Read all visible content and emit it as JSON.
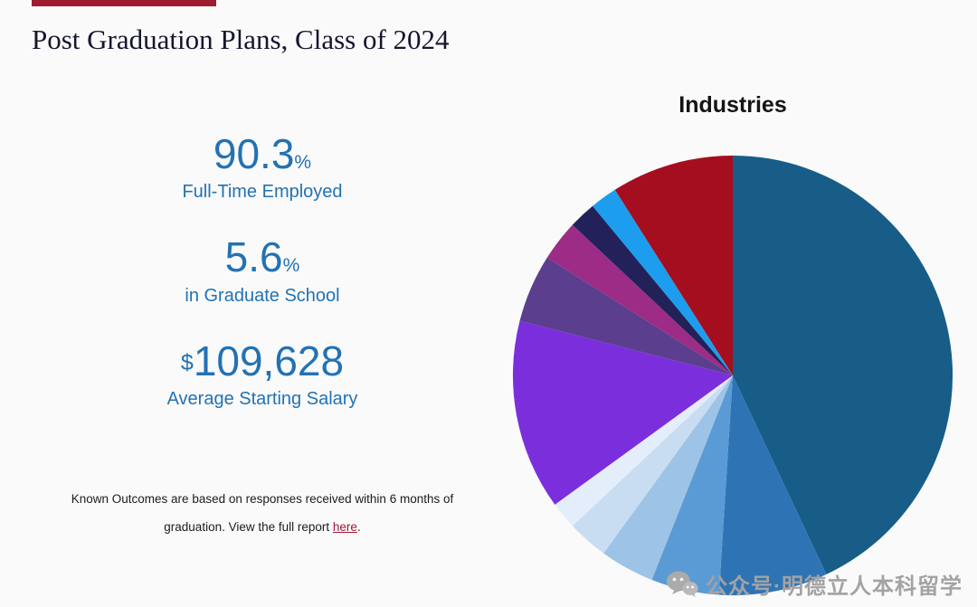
{
  "theme": {
    "page_bg": "#fafafa",
    "accent": "#9e1b32",
    "stat_blue": "#2272b4",
    "text_dark": "#15152e",
    "watermark_gray": "#a3a3a3"
  },
  "page": {
    "title": "Post Graduation Plans, Class of 2024"
  },
  "stats": [
    {
      "value": "90.3",
      "suffix": "%",
      "label": "Full-Time Employed"
    },
    {
      "value": "5.6",
      "suffix": "%",
      "label": "in Graduate School"
    },
    {
      "value": "109,628",
      "prefix": "$",
      "label": "Average Starting Salary"
    }
  ],
  "footnote": {
    "line1": "Known Outcomes are based on responses received within 6 months of",
    "line2_prefix": "graduation. View the full report ",
    "link": "here",
    "line2_suffix": "."
  },
  "chart_data": {
    "type": "pie",
    "title": "Industries",
    "legend": "none",
    "unit": "%",
    "start_angle_deg": 0,
    "direction": "clockwise",
    "segments": [
      {
        "value": 43,
        "color": "#175d87"
      },
      {
        "value": 8,
        "color": "#2e74b5"
      },
      {
        "value": 5,
        "color": "#5b9bd5"
      },
      {
        "value": 4,
        "color": "#9dc3e6"
      },
      {
        "value": 3,
        "color": "#c9ddf2"
      },
      {
        "value": 2,
        "color": "#e4eefb"
      },
      {
        "value": 14,
        "color": "#7b2fdc"
      },
      {
        "value": 5,
        "color": "#5b3e8e"
      },
      {
        "value": 3,
        "color": "#9c2c86"
      },
      {
        "value": 2,
        "color": "#232159"
      },
      {
        "value": 2,
        "color": "#1d9ded"
      },
      {
        "value": 9,
        "color": "#a40e1e"
      }
    ]
  },
  "watermark": {
    "icon": "wechat-icon",
    "text": "公众号·明德立人本科留学"
  }
}
